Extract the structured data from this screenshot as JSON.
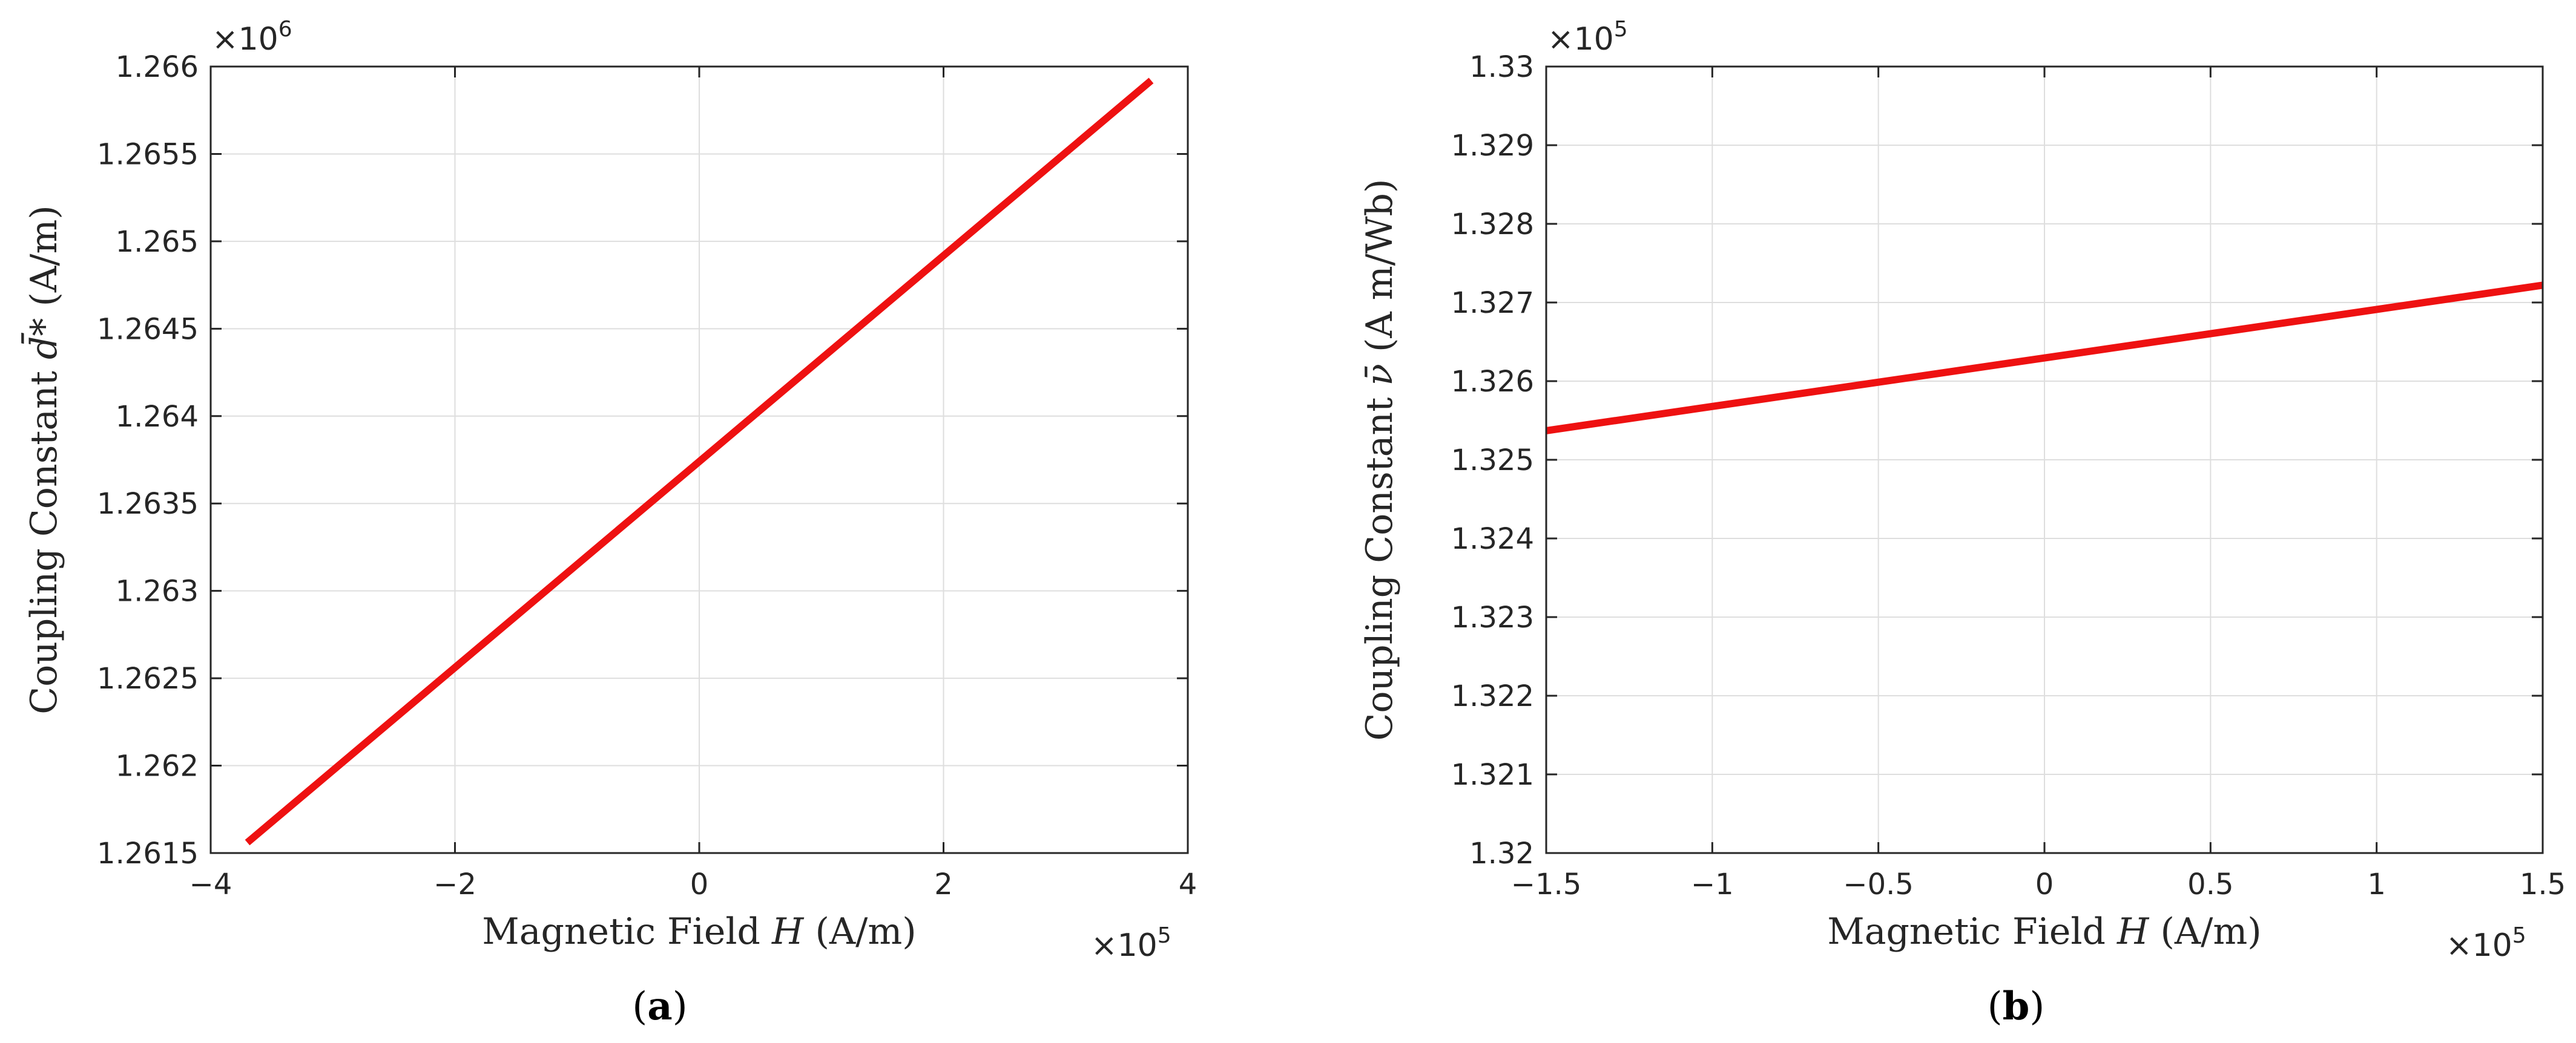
{
  "chart_data": [
    {
      "type": "line",
      "panel_label": "a",
      "xlabel": {
        "prefix": "Magnetic Field ",
        "symbol": "H",
        "suffix": " (A/m)"
      },
      "ylabel": {
        "prefix": "Coupling Constant ",
        "symbol": "d̄*",
        "suffix": " (A/m)"
      },
      "x_exponent": {
        "base": "×10",
        "power": "5"
      },
      "y_exponent": {
        "base": "×10",
        "power": "6"
      },
      "xlim": [
        -4,
        4
      ],
      "ylim": [
        1.2615,
        1.266
      ],
      "xticks": [
        -4,
        -2,
        0,
        2,
        4
      ],
      "xtick_labels": [
        "−4",
        "−2",
        "0",
        "2",
        "4"
      ],
      "yticks": [
        1.2615,
        1.262,
        1.2625,
        1.263,
        1.2635,
        1.264,
        1.2645,
        1.265,
        1.2655,
        1.266
      ],
      "ytick_labels": [
        "1.2615",
        "1.262",
        "1.2625",
        "1.263",
        "1.2635",
        "1.264",
        "1.2645",
        "1.265",
        "1.2655",
        "1.266"
      ],
      "grid": true,
      "series": [
        {
          "color": "#ee1111",
          "x": [
            -3.7,
            3.7
          ],
          "y": [
            1.26156,
            1.26592
          ]
        }
      ]
    },
    {
      "type": "line",
      "panel_label": "b",
      "xlabel": {
        "prefix": "Magnetic Field ",
        "symbol": "H",
        "suffix": " (A/m)"
      },
      "ylabel": {
        "prefix": "Coupling Constant ",
        "symbol": "ν̄",
        "suffix": " (A m/Wb)"
      },
      "x_exponent": {
        "base": "×10",
        "power": "5"
      },
      "y_exponent": {
        "base": "×10",
        "power": "5"
      },
      "xlim": [
        -1.5,
        1.5
      ],
      "ylim": [
        1.32,
        1.33
      ],
      "xticks": [
        -1.5,
        -1,
        -0.5,
        0,
        0.5,
        1,
        1.5
      ],
      "xtick_labels": [
        "−1.5",
        "−1",
        "−0.5",
        "0",
        "0.5",
        "1",
        "1.5"
      ],
      "yticks": [
        1.32,
        1.321,
        1.322,
        1.323,
        1.324,
        1.325,
        1.326,
        1.327,
        1.328,
        1.329,
        1.33
      ],
      "ytick_labels": [
        "1.32",
        "1.321",
        "1.322",
        "1.323",
        "1.324",
        "1.325",
        "1.326",
        "1.327",
        "1.328",
        "1.329",
        "1.33"
      ],
      "grid": true,
      "series": [
        {
          "color": "#ee1111",
          "x": [
            -1.5,
            1.5
          ],
          "y": [
            1.32537,
            1.32722
          ]
        }
      ]
    }
  ]
}
